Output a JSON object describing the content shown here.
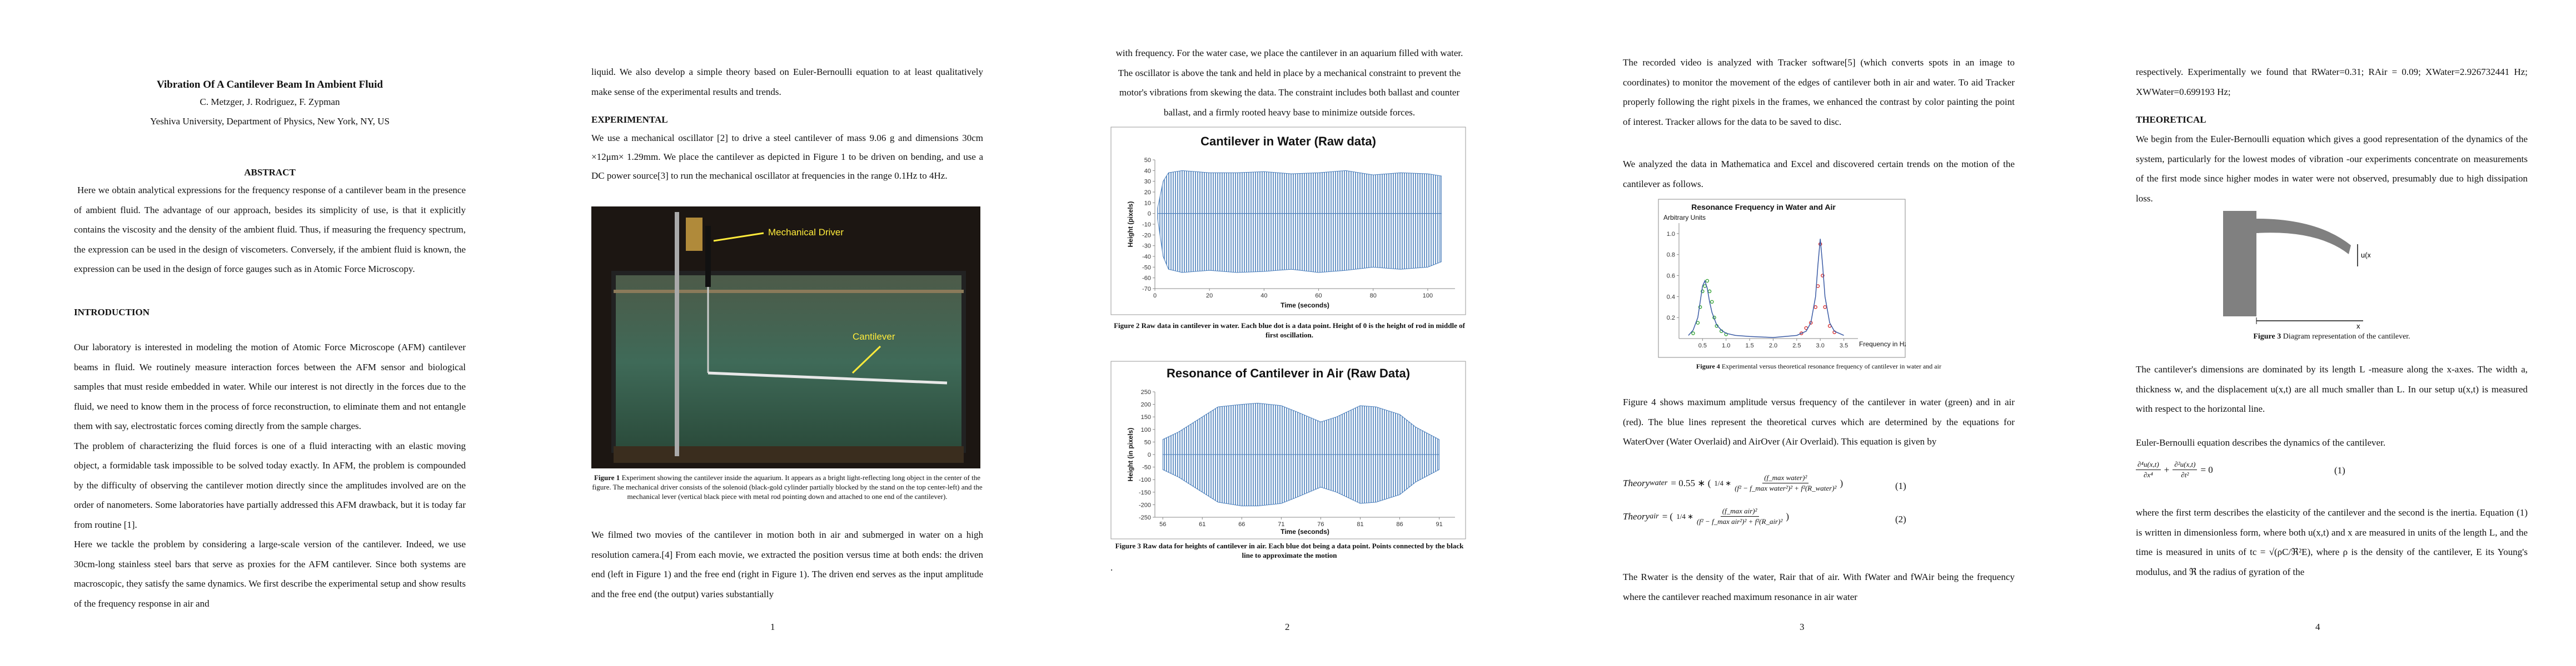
{
  "page1": {
    "title": "Vibration Of A Cantilever Beam In Ambient Fluid",
    "authors": "C. Metzger, J. Rodriguez, F. Zypman",
    "affiliation": "Yeshiva University, Department of Physics, New York, NY, US",
    "abstract_heading": "ABSTRACT",
    "abstract": "Here we obtain analytical expressions for the frequency response of a cantilever beam in the presence of ambient fluid.  The advantage of our approach, besides its simplicity of use, is that it explicitly contains the viscosity and the density of the ambient fluid.  Thus, if measuring the frequency spectrum, the expression can be used in the design of viscometers.  Conversely, if the ambient fluid is known, the expression can be used in the design of force gauges such as in Atomic Force Microscopy.",
    "introduction_heading": "INTRODUCTION",
    "introduction": [
      "Our laboratory is interested in modeling the motion of Atomic Force Microscope (AFM) cantilever beams in fluid.  We routinely measure interaction forces between the AFM sensor and biological samples that must reside embedded in water.  While our interest is not directly in the forces due to the fluid, we need to know them in the process of force reconstruction, to eliminate them and not entangle them with say, electrostatic forces coming directly from the sample charges.",
      "The problem of characterizing the fluid forces is one of a fluid interacting with an elastic moving object, a formidable task impossible to be solved today exactly.  In AFM, the problem is compounded by the difficulty of observing the cantilever motion directly since the amplitudes involved are on the order of nanometers.  Some laboratories have partially addressed this AFM drawback, but it is today far from routine [1].",
      "Here we tackle the problem by considering a large-scale version of the cantilever. Indeed, we use 30cm-long stainless steel bars that serve as proxies for the AFM cantilever.  Since both systems are macroscopic, they satisfy the same dynamics.  We first describe the experimental setup and show results of the frequency response in air and"
    ]
  },
  "page2": {
    "text": "liquid.  We also develop a simple theory based on Euler-Bernoulli equation to at least qualitatively make sense of the experimental results and trends.",
    "experimental_heading": "EXPERIMENTAL",
    "experimental": "We use a mechanical oscillator [2] to drive a steel cantilever of mass 9.06 g and dimensions 30cm ×12μm× 1.29mm. We place the cantilever as depicted in Figure 1 to be driven on bending, and use a DC power source[3] to run the mechanical oscillator at frequencies in the range 0.1Hz to 4Hz.",
    "figure1": {
      "driver_label": "Mechanical Driver",
      "cantilever_label": "Cantilever",
      "caption_label": "Figure 1",
      "caption": "Experiment showing the cantilever inside the aquarium. It appears as a bright light-reflecting long object in the center of the figure.  The mechanical driver consists of the solenoid (black-gold cylinder partially blocked by the stand on the top center-left) and the mechanical lever (vertical black piece with metal rod pointing down and attached to one end of the cantilever)."
    },
    "paragraph": "We filmed two movies of the cantilever in motion both in air and submerged in water on a high resolution camera.[4] From each movie, we extracted the position versus time at both ends: the driven end (left in Figure 1) and the free end (right in Figure 1).  The driven end serves as the input amplitude and the free end (the output) varies substantially"
  },
  "page3": {
    "paragraph": "with frequency.  For the water case, we place the cantilever in an aquarium filled with water. The oscillator is above the tank and held in place by a mechanical constraint to prevent the motor's vibrations from skewing the data. The constraint includes both ballast and counter ballast, and a firmly rooted heavy base to minimize outside forces.",
    "figure2": {
      "chart": {
        "type": "area",
        "title": "Cantilever in Water (Raw data)",
        "x_label": "Time (seconds)",
        "y_label": "Height (pixels)",
        "x": [
          1,
          3,
          5,
          10,
          20,
          30,
          40,
          50,
          60,
          70,
          80,
          90,
          100,
          105
        ],
        "series": [
          {
            "color": "#4a7ebb",
            "values": [
              5,
              30,
              38,
              40,
              38,
              38,
              39,
              37,
              38,
              40,
              36,
              38,
              37,
              35
            ]
          },
          {
            "color": "#4a7ebb",
            "values": [
              -5,
              -40,
              -52,
              -55,
              -53,
              -55,
              -54,
              -52,
              -55,
              -53,
              -50,
              -52,
              -50,
              -45
            ]
          }
        ],
        "xlim": [
          0,
          110
        ],
        "ylim": [
          -70,
          50
        ],
        "xticks": [
          0,
          20,
          40,
          60,
          80,
          100
        ],
        "yticks": [
          50,
          40,
          30,
          20,
          10,
          0,
          -10,
          -20,
          -30,
          -40,
          -50,
          -60,
          -70
        ]
      },
      "caption_label": "Figure 2",
      "caption": "Raw data in cantilever in water. Each blue dot is a data point. Height of 0 is the height of rod in middle of first oscillation."
    },
    "figure3": {
      "chart": {
        "type": "area",
        "title": "Resonance of Cantilever in Air (Raw Data)",
        "x_label": "Time (seconds)",
        "y_label": "Height (in pixels)",
        "x": [
          56,
          58,
          61,
          63,
          66,
          68,
          71,
          73,
          76,
          78,
          81,
          83,
          86,
          88,
          91
        ],
        "series": [
          {
            "color": "#4a7ebb",
            "values": [
              60,
              90,
              150,
              190,
              200,
              205,
              195,
              170,
              130,
              150,
              195,
              190,
              160,
              110,
              60
            ]
          },
          {
            "color": "#4a7ebb",
            "values": [
              -60,
              -90,
              -150,
              -190,
              -205,
              -205,
              -195,
              -170,
              -130,
              -150,
              -195,
              -190,
              -160,
              -110,
              -60
            ]
          }
        ],
        "xlim": [
          55,
          93
        ],
        "ylim": [
          -250,
          250
        ],
        "xticks": [
          56,
          61,
          66,
          71,
          76,
          81,
          86,
          91
        ],
        "yticks": [
          250,
          200,
          150,
          100,
          50,
          0,
          -50,
          -100,
          -150,
          -200,
          -250
        ]
      },
      "caption_label": "Figure 3",
      "caption": "Raw data for heights of cantilever in air. Each blue dot being a data point. Points connected by the black line to approximate the motion"
    },
    "trailing": "."
  },
  "page4": {
    "paragraphs": [
      "The recorded video is analyzed with Tracker software[5] (which converts spots in an image to coordinates) to monitor the movement of the edges of cantilever both in air and water. To aid Tracker properly following the right pixels in the frames, we enhanced the contrast by color painting the point of interest. Tracker allows for the data to be saved to disc.",
      "We analyzed the data in Mathematica and Excel and discovered certain trends on the motion of the cantilever as follows."
    ],
    "figure4": {
      "chart": {
        "type": "scatter",
        "title": "Resonance Frequency in Water and Air",
        "x_label": "Frequency in Hz",
        "y_label": "Arbitrary Units",
        "series": [
          {
            "color": "#2ca02c",
            "mode": "markers",
            "x": [
              0.3,
              0.4,
              0.45,
              0.5,
              0.55,
              0.6,
              0.65,
              0.7,
              0.75,
              0.8,
              0.9,
              1.0
            ],
            "values": [
              0.05,
              0.15,
              0.3,
              0.45,
              0.5,
              0.55,
              0.45,
              0.35,
              0.2,
              0.12,
              0.07,
              0.04
            ]
          },
          {
            "color": "#d62728",
            "mode": "markers",
            "x": [
              2.6,
              2.7,
              2.8,
              2.9,
              2.95,
              3.0,
              3.05,
              3.1,
              3.2,
              3.3
            ],
            "values": [
              0.05,
              0.1,
              0.15,
              0.3,
              0.5,
              0.9,
              0.6,
              0.3,
              0.12,
              0.06
            ]
          },
          {
            "color": "#3b5ba5",
            "mode": "line",
            "x": [
              0.2,
              0.3,
              0.4,
              0.45,
              0.5,
              0.55,
              0.6,
              0.65,
              0.7,
              0.8,
              0.9,
              1.0,
              1.2,
              1.5,
              2.0
            ],
            "values": [
              0.03,
              0.08,
              0.2,
              0.35,
              0.5,
              0.55,
              0.48,
              0.35,
              0.25,
              0.13,
              0.08,
              0.05,
              0.03,
              0.02,
              0.01
            ]
          },
          {
            "color": "#3b5ba5",
            "mode": "line",
            "x": [
              2.0,
              2.5,
              2.7,
              2.8,
              2.9,
              2.95,
              3.0,
              3.05,
              3.1,
              3.2,
              3.3,
              3.5
            ],
            "values": [
              0.01,
              0.03,
              0.07,
              0.15,
              0.4,
              0.7,
              0.95,
              0.7,
              0.4,
              0.15,
              0.07,
              0.03
            ]
          }
        ],
        "xlim": [
          0,
          3.8
        ],
        "ylim": [
          0,
          1.1
        ],
        "xticks": [
          0.5,
          {
            "value": 1,
            "label": "1.0"
          },
          1.5,
          {
            "value": 2,
            "label": "2.0"
          },
          2.5,
          {
            "value": 3,
            "label": "3.0"
          },
          3.5
        ],
        "yticks": [
          {
            "value": 1,
            "label": "1.0"
          },
          0.8,
          0.6,
          0.4,
          0.2
        ]
      },
      "caption_label": "Figure 4",
      "caption": "Experimental versus theoretical resonance frequency of cantilever in water and air"
    },
    "paragraph": "Figure 4 shows maximum amplitude versus frequency of the cantilever in water (green) and in air (red). The blue lines represent the theoretical curves which are determined by the equations for WaterOver (Water Overlaid) and AirOver (Air Overlaid). This equation is given by",
    "equations": [
      {
        "lhs": "Theory",
        "sub": "water",
        "open": "= 0.55 ∗ (",
        "pre": "1/4 ∗",
        "num": "(f_max water)²",
        "den": "(f² − f_max water²)² + f²(R_water)²",
        "close": ")",
        "number": "(1)"
      },
      {
        "lhs": "Theory",
        "sub": "air",
        "open": "= (",
        "pre": "1/4 ∗",
        "num": "(f_max air)²",
        "den": "(f² − f_max air²)² + f²(R_air)²",
        "close": ")",
        "number": "(2)"
      }
    ],
    "closing": "The Rwater is the density of the water, Rair that of air. With fWater and fWAir being the frequency where the cantilever reached maximum resonance in air water"
  },
  "page5": {
    "text": "respectively. Experimentally we found that RWater=0.31; RAir = 0.09; XWater=2.926732441 Hz; XWWater=0.699193 Hz;",
    "theoretical_heading": "THEORETICAL",
    "theoretical": "We begin from the Euler-Bernoulli equation which gives a good representation of the dynamics of the system, particularly for the lowest modes of vibration -our experiments concentrate on measurements of the first mode since higher modes in water were not observed, presumably due to high dissipation loss.",
    "diagram": {
      "u_label": "u(x,t)",
      "x_label": "x",
      "caption_label": "Figure 3",
      "caption": "Diagram representation of the cantilever."
    },
    "dimensions": "The cantilever's dimensions are dominated by its length L -measure along the x-axes. The width a, thickness w, and the displacement u(x,t) are all much smaller than L.  In our setup u(x,t) is measured with respect to the horizontal line.",
    "euler": "Euler-Bernoulli equation describes the dynamics of the cantilever.",
    "equation": {
      "num1": "∂⁴u(x,t)",
      "den1": "∂x⁴",
      "plus": "+",
      "num2": "∂²u(x,t)",
      "den2": "∂t²",
      "rhs": "= 0",
      "number": "(1)"
    },
    "closing": "where the first term describes the elasticity of the cantilever and the second is the inertia. Equation (1) is written in dimensionless form, where both u(x,t) and x are measured in units of the length L, and the time is measured in units of tc = √(ρC/ℜ²E), where ρ is the density of the cantilever, E its Young's modulus, and ℜ the radius of gyration of the"
  },
  "page_numbers": [
    "1",
    "2",
    "3",
    "4"
  ]
}
